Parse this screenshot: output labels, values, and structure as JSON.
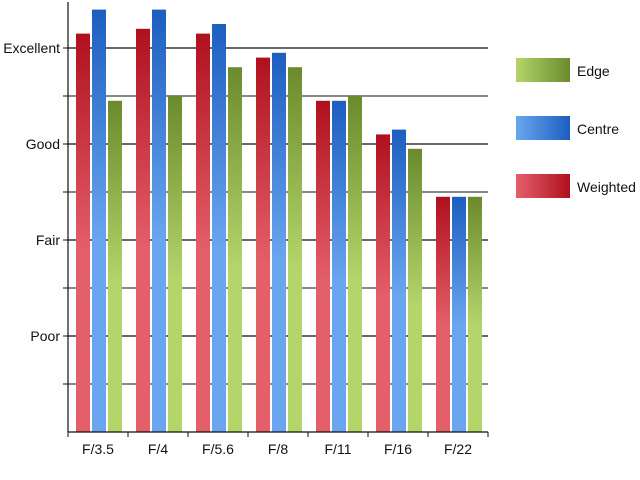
{
  "chart_data": {
    "type": "bar",
    "title": "",
    "xlabel": "",
    "ylabel": "",
    "categories": [
      "F/3.5",
      "F/4",
      "F/5.6",
      "F/8",
      "F/11",
      "F/16",
      "F/22"
    ],
    "y_tick_labels": [
      {
        "value": 4,
        "label": "Excellent"
      },
      {
        "value": 3,
        "label": "Good"
      },
      {
        "value": 2,
        "label": "Fair"
      },
      {
        "value": 1,
        "label": "Poor"
      }
    ],
    "ylim": [
      0,
      4.4
    ],
    "grid": true,
    "legend_position": "right",
    "series": [
      {
        "name": "Weighted",
        "values": [
          4.15,
          4.2,
          4.15,
          3.9,
          3.45,
          3.1,
          2.45
        ],
        "color_light": "#e45f6a",
        "color_dark": "#b0101e"
      },
      {
        "name": "Centre",
        "values": [
          4.4,
          4.4,
          4.25,
          3.95,
          3.45,
          3.15,
          2.45
        ],
        "color_light": "#6aa6ef",
        "color_dark": "#1d5ebf"
      },
      {
        "name": "Edge",
        "values": [
          3.45,
          3.5,
          3.8,
          3.8,
          3.5,
          2.95,
          2.45
        ],
        "color_light": "#b4d56a",
        "color_dark": "#6b8a2c"
      }
    ],
    "legend_order": [
      "Edge",
      "Centre",
      "Weighted"
    ]
  }
}
